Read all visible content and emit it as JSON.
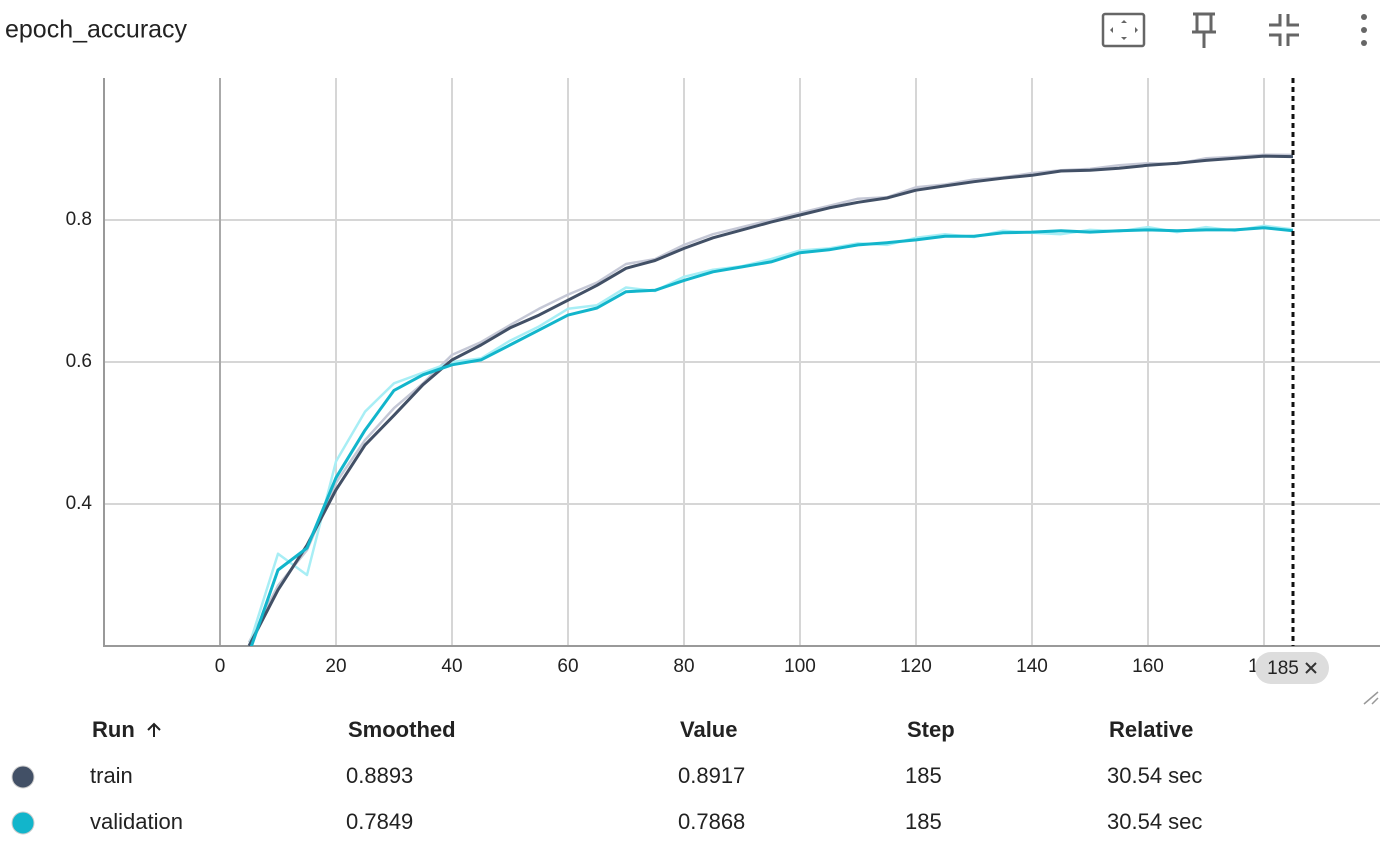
{
  "title": "epoch_accuracy",
  "chart_data": {
    "type": "line",
    "x": [
      5,
      10,
      15,
      20,
      25,
      30,
      35,
      40,
      45,
      50,
      55,
      60,
      65,
      70,
      75,
      80,
      85,
      90,
      95,
      100,
      105,
      110,
      115,
      120,
      125,
      130,
      135,
      140,
      145,
      150,
      155,
      160,
      165,
      170,
      175,
      180,
      185
    ],
    "series": [
      {
        "name": "train",
        "color": "#425066",
        "raw_color": "#c5c8d6",
        "values": [
          0.2,
          0.279,
          0.342,
          0.42,
          0.483,
          0.525,
          0.568,
          0.603,
          0.624,
          0.648,
          0.666,
          0.687,
          0.708,
          0.732,
          0.743,
          0.76,
          0.775,
          0.786,
          0.797,
          0.807,
          0.817,
          0.825,
          0.831,
          0.842,
          0.848,
          0.854,
          0.859,
          0.863,
          0.869,
          0.87,
          0.873,
          0.877,
          0.88,
          0.884,
          0.887,
          0.89,
          0.8893
        ],
        "raw_values": [
          0.205,
          0.285,
          0.335,
          0.43,
          0.49,
          0.535,
          0.57,
          0.61,
          0.628,
          0.652,
          0.675,
          0.695,
          0.712,
          0.738,
          0.745,
          0.765,
          0.78,
          0.79,
          0.8,
          0.81,
          0.82,
          0.83,
          0.832,
          0.846,
          0.85,
          0.857,
          0.86,
          0.866,
          0.87,
          0.872,
          0.877,
          0.88,
          0.879,
          0.887,
          0.889,
          0.892,
          0.8917
        ]
      },
      {
        "name": "validation",
        "color": "#12b5cb",
        "raw_color": "#a8eef5",
        "values": [
          0.19,
          0.307,
          0.338,
          0.437,
          0.504,
          0.56,
          0.582,
          0.596,
          0.603,
          0.624,
          0.645,
          0.666,
          0.676,
          0.699,
          0.701,
          0.715,
          0.727,
          0.734,
          0.741,
          0.754,
          0.758,
          0.765,
          0.768,
          0.772,
          0.777,
          0.777,
          0.782,
          0.783,
          0.785,
          0.783,
          0.785,
          0.786,
          0.785,
          0.786,
          0.786,
          0.789,
          0.7849
        ],
        "raw_values": [
          0.2,
          0.33,
          0.3,
          0.46,
          0.53,
          0.57,
          0.585,
          0.6,
          0.605,
          0.63,
          0.65,
          0.675,
          0.68,
          0.705,
          0.7,
          0.72,
          0.73,
          0.735,
          0.745,
          0.757,
          0.76,
          0.767,
          0.765,
          0.775,
          0.78,
          0.776,
          0.785,
          0.782,
          0.78,
          0.786,
          0.784,
          0.79,
          0.783,
          0.79,
          0.785,
          0.792,
          0.7868
        ]
      }
    ],
    "xlim": [
      -20,
      200
    ],
    "ylim": [
      0.2,
      1.0
    ],
    "xticks": [
      0,
      20,
      40,
      60,
      80,
      100,
      120,
      140,
      160,
      180
    ],
    "yticks": [
      0.4,
      0.6,
      0.8
    ],
    "grid": true,
    "cursor": 185
  },
  "table": {
    "columns": [
      "Run",
      "Smoothed",
      "Value",
      "Step",
      "Relative"
    ],
    "rows": [
      [
        "train",
        "0.8893",
        "0.8917",
        "185",
        "30.54 sec"
      ],
      [
        "validation",
        "0.7849",
        "0.7868",
        "185",
        "30.54 sec"
      ]
    ]
  }
}
